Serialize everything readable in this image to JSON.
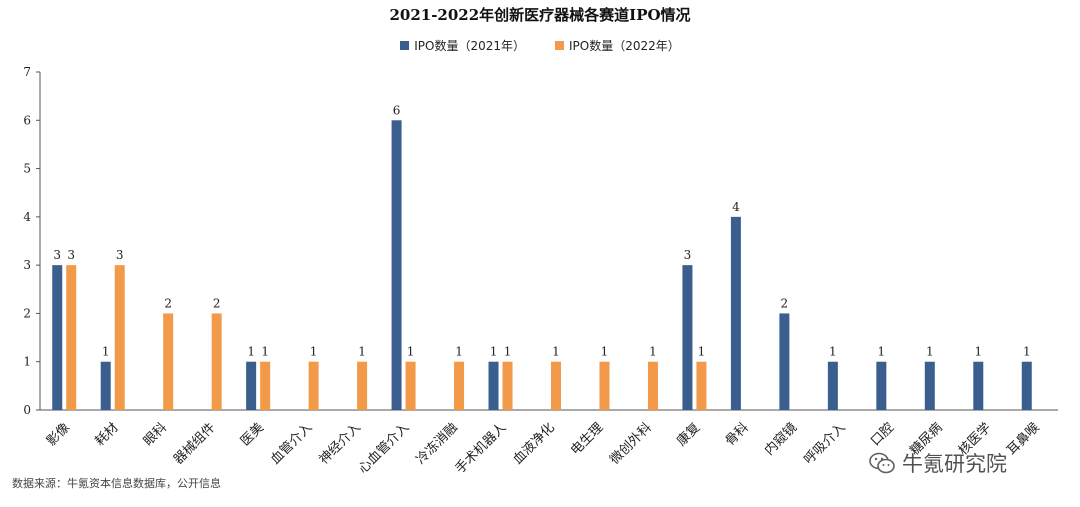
{
  "chart_data": {
    "type": "bar",
    "title": "2021-2022年创新医疗器械各赛道IPO情况",
    "categories": [
      "影像",
      "耗材",
      "眼科",
      "器械组件",
      "医美",
      "血管介入",
      "神经介入",
      "心血管介入",
      "冷冻消融",
      "手术机器人",
      "血液净化",
      "电生理",
      "微创外科",
      "康复",
      "骨科",
      "内窥镜",
      "呼吸介入",
      "口腔",
      "糖尿病",
      "核医学",
      "耳鼻喉"
    ],
    "series": [
      {
        "name": "IPO数量（2021年）",
        "color": "#3a5f8f",
        "values": [
          3,
          1,
          0,
          0,
          1,
          0,
          0,
          6,
          0,
          1,
          0,
          0,
          0,
          3,
          4,
          2,
          1,
          1,
          1,
          1,
          1
        ]
      },
      {
        "name": "IPO数量（2022年）",
        "color": "#f2994a",
        "values": [
          3,
          3,
          2,
          2,
          1,
          1,
          1,
          1,
          1,
          1,
          1,
          1,
          1,
          1,
          0,
          0,
          0,
          0,
          0,
          0,
          0
        ]
      }
    ],
    "ylim": [
      0,
      7
    ],
    "yticks": [
      0,
      1,
      2,
      3,
      4,
      5,
      6,
      7
    ],
    "legend_position": "top",
    "grid": false,
    "source": "数据来源：牛氪资本信息数据库，公开信息"
  },
  "watermark": {
    "text": "牛氪研究院",
    "icon": "wechat-icon"
  }
}
